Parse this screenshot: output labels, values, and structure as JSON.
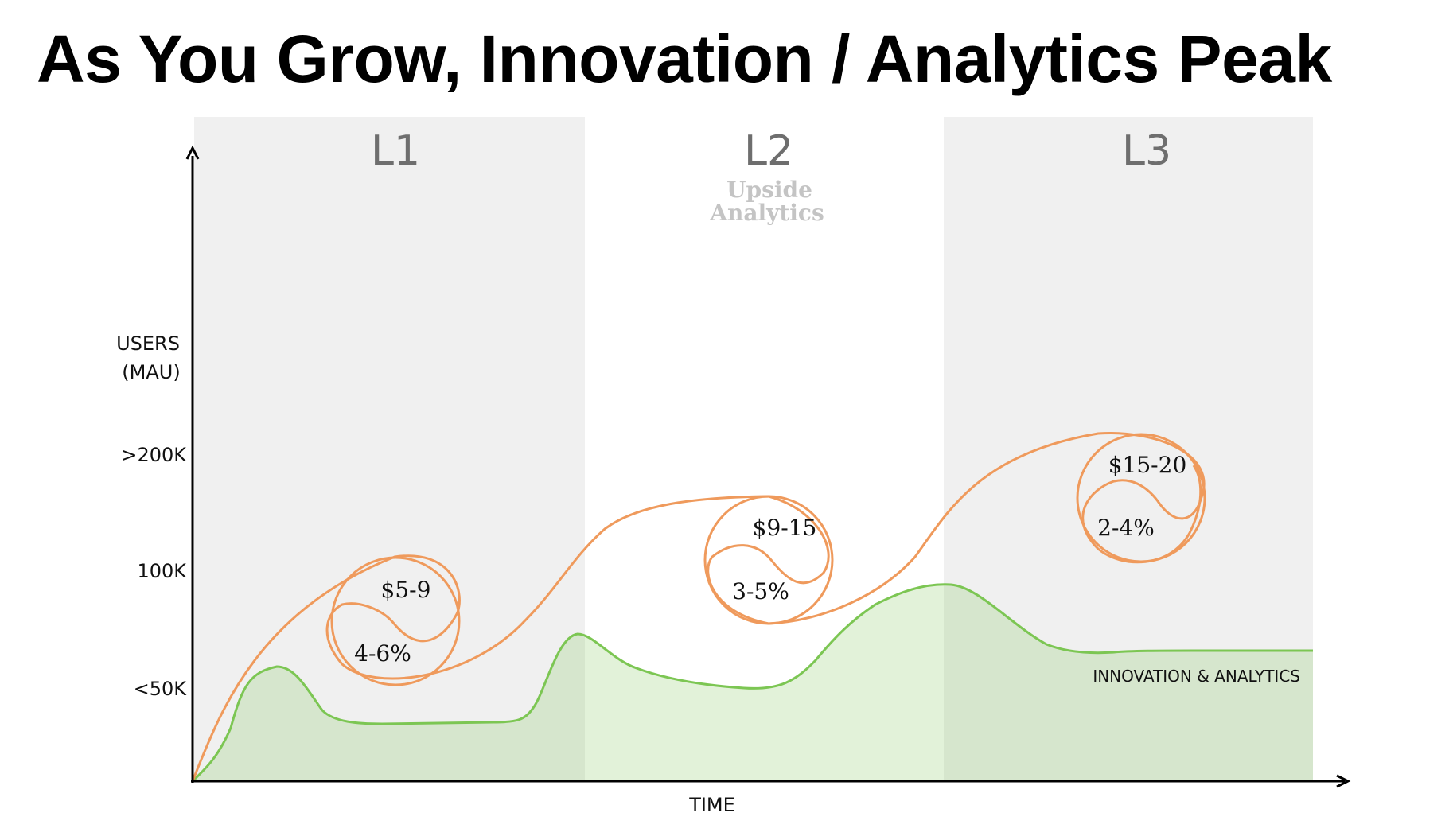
{
  "title": "As You Grow, Innovation / Analytics Peak",
  "watermark": [
    "Upside",
    "Analytics"
  ],
  "bands": [
    {
      "label": "L1",
      "shaded": true
    },
    {
      "label": "L2",
      "shaded": false
    },
    {
      "label": "L3",
      "shaded": true
    }
  ],
  "y_axis": {
    "label": [
      "USERS",
      "(MAU)"
    ],
    "ticks": [
      ">200K",
      "100K",
      "<50K"
    ]
  },
  "x_axis": {
    "label": "TIME"
  },
  "loops": [
    {
      "price": "$5-9",
      "rate": "4-6%"
    },
    {
      "price": "$9-15",
      "rate": "3-5%"
    },
    {
      "price": "$15-20",
      "rate": "2-4%"
    }
  ],
  "series": {
    "users_curve_color": "#ef9a5c",
    "innovation_label": "INNOVATION & ANALYTICS",
    "innovation_line_color": "#7cc653",
    "innovation_fill_color": "#d3e7c6"
  },
  "colors": {
    "band_shade": "#f0f0f0",
    "axis": "#000000"
  }
}
